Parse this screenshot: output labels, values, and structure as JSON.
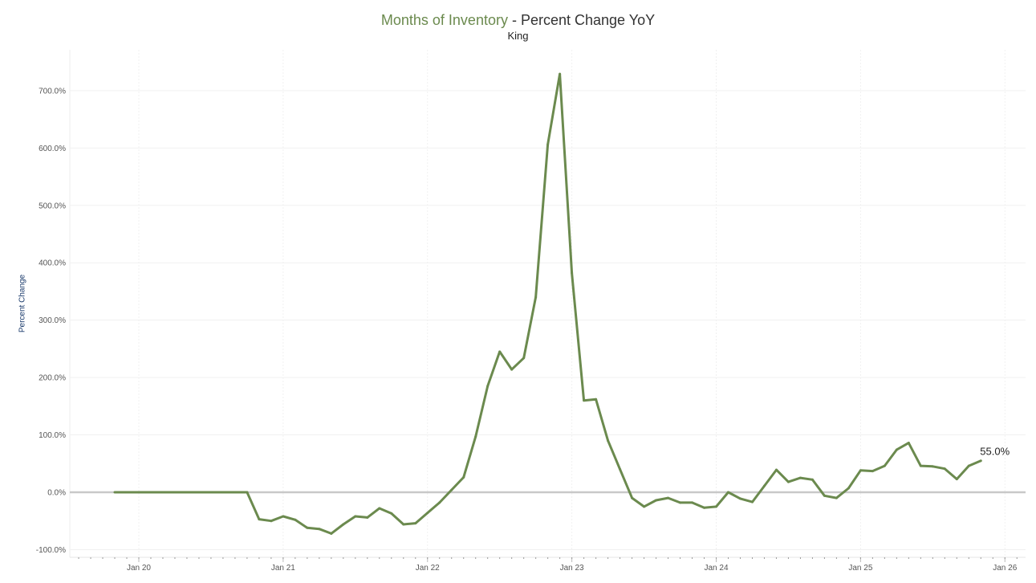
{
  "chart_data": {
    "type": "line",
    "title_accent": "Months of Inventory",
    "title_rest": " - Percent Change YoY",
    "subtitle": "King",
    "xlabel": "",
    "ylabel": "Percent Change",
    "start_month": "2019-11",
    "ylim": [
      -100,
      700
    ],
    "y_ticks": [
      -100,
      0,
      100,
      200,
      300,
      400,
      500,
      600,
      700
    ],
    "y_tick_labels": [
      "-100.0%",
      "0.0%",
      "100.0%",
      "200.0%",
      "300.0%",
      "400.0%",
      "500.0%",
      "600.0%",
      "700.0%"
    ],
    "x_ticks": [
      {
        "label": "Jan 20",
        "month_index": 2
      },
      {
        "label": "Jan 21",
        "month_index": 14
      },
      {
        "label": "Jan 22",
        "month_index": 26
      },
      {
        "label": "Jan 23",
        "month_index": 38
      },
      {
        "label": "Jan 24",
        "month_index": 50
      },
      {
        "label": "Jan 25",
        "month_index": 62
      },
      {
        "label": "Jan 26",
        "month_index": 74
      }
    ],
    "grid": true,
    "series": [
      {
        "name": "Months of Inventory YoY %",
        "color": "#6b8a4e",
        "values": [
          0,
          0,
          0,
          0,
          0,
          0,
          0,
          0,
          0,
          0,
          0,
          0,
          -47,
          -50,
          -42,
          -48,
          -62,
          -64,
          -72,
          -56,
          -42,
          -44,
          -28,
          -37,
          -56,
          -54,
          -36,
          -18,
          4,
          26,
          97,
          185,
          245,
          214,
          234,
          340,
          606,
          729,
          382,
          160,
          162,
          90,
          40,
          -10,
          -25,
          -14,
          -10,
          -18,
          -18,
          -27,
          -25,
          0,
          -11,
          -17,
          11,
          39,
          18,
          25,
          22,
          -6,
          -10,
          7,
          38,
          37,
          46,
          74,
          86,
          46,
          45,
          41,
          23,
          46,
          55
        ]
      }
    ],
    "last_value_label": "55.0%"
  }
}
